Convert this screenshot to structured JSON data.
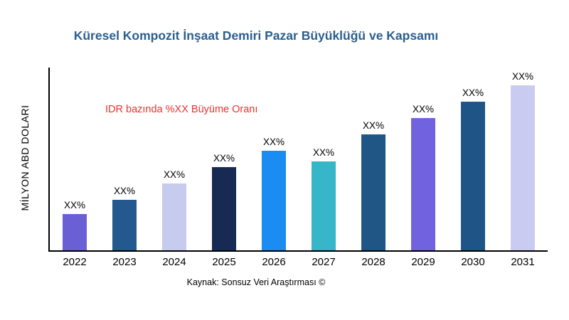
{
  "chart_data": {
    "type": "bar",
    "title": "Küresel Kompozit İnşaat Demiri Pazar Büyüklüğü ve Kapsamı",
    "xlabel": "",
    "ylabel": "MİLYON ABD DOLARI",
    "annotation": "IDR bazında %XX Büyüme Oranı",
    "source": "Kaynak: Sonsuz Veri Araştırması ©",
    "categories": [
      "2022",
      "2023",
      "2024",
      "2025",
      "2026",
      "2027",
      "2028",
      "2029",
      "2030",
      "2031"
    ],
    "values": [
      20,
      28,
      37,
      46,
      55,
      49,
      64,
      73,
      82,
      91
    ],
    "bar_labels": [
      "XX%",
      "XX%",
      "XX%",
      "XX%",
      "XX%",
      "XX%",
      "XX%",
      "XX%",
      "XX%",
      "XX%"
    ],
    "bar_colors": [
      "#6B5FD6",
      "#23598C",
      "#C7CBEE",
      "#172A54",
      "#1B8CF2",
      "#38B6C9",
      "#1F5685",
      "#7163DF",
      "#1E5586",
      "#C9CCF0"
    ],
    "ylim": [
      0,
      100
    ],
    "grid": false,
    "legend": "none",
    "colors": {
      "title_text": "#2A5F8F",
      "annotation_text": "#F03030",
      "axis": "#000000",
      "background": "#FFFFFF"
    }
  }
}
